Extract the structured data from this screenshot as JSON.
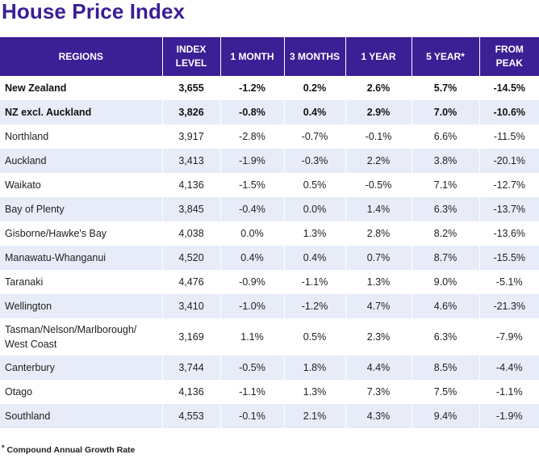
{
  "title": "House Price Index",
  "columns": {
    "regions": "REGIONS",
    "index_level": [
      "INDEX",
      "LEVEL"
    ],
    "one_month": "1 MONTH",
    "three_months": "3 MONTHS",
    "one_year": "1 YEAR",
    "five_year": "5 YEAR*",
    "from_peak": [
      "FROM",
      "PEAK"
    ]
  },
  "rows": [
    {
      "region": [
        "New Zealand"
      ],
      "index": "3,655",
      "m1": "-1.2%",
      "m3": "0.2%",
      "y1": "2.6%",
      "y5": "5.7%",
      "peak": "-14.5%"
    },
    {
      "region": [
        "NZ excl. Auckland"
      ],
      "index": "3,826",
      "m1": "-0.8%",
      "m3": "0.4%",
      "y1": "2.9%",
      "y5": "7.0%",
      "peak": "-10.6%"
    },
    {
      "region": [
        "Northland"
      ],
      "index": "3,917",
      "m1": "-2.8%",
      "m3": "-0.7%",
      "y1": "-0.1%",
      "y5": "6.6%",
      "peak": "-11.5%"
    },
    {
      "region": [
        "Auckland"
      ],
      "index": "3,413",
      "m1": "-1.9%",
      "m3": "-0.3%",
      "y1": "2.2%",
      "y5": "3.8%",
      "peak": "-20.1%"
    },
    {
      "region": [
        "Waikato"
      ],
      "index": "4,136",
      "m1": "-1.5%",
      "m3": "0.5%",
      "y1": "-0.5%",
      "y5": "7.1%",
      "peak": "-12.7%"
    },
    {
      "region": [
        "Bay of Plenty"
      ],
      "index": "3,845",
      "m1": "-0.4%",
      "m3": "0.0%",
      "y1": "1.4%",
      "y5": "6.3%",
      "peak": "-13.7%"
    },
    {
      "region": [
        "Gisborne/Hawke's Bay"
      ],
      "index": "4,038",
      "m1": "0.0%",
      "m3": "1.3%",
      "y1": "2.8%",
      "y5": "8.2%",
      "peak": "-13.6%"
    },
    {
      "region": [
        "Manawatu-Whanganui"
      ],
      "index": "4,520",
      "m1": "0.4%",
      "m3": "0.4%",
      "y1": "0.7%",
      "y5": "8.7%",
      "peak": "-15.5%"
    },
    {
      "region": [
        "Taranaki"
      ],
      "index": "4,476",
      "m1": "-0.9%",
      "m3": "-1.1%",
      "y1": "1.3%",
      "y5": "9.0%",
      "peak": "-5.1%"
    },
    {
      "region": [
        "Wellington"
      ],
      "index": "3,410",
      "m1": "-1.0%",
      "m3": "-1.2%",
      "y1": "4.7%",
      "y5": "4.6%",
      "peak": "-21.3%"
    },
    {
      "region": [
        "Tasman/Nelson/Marlborough/",
        "West Coast"
      ],
      "index": "3,169",
      "m1": "1.1%",
      "m3": "0.5%",
      "y1": "2.3%",
      "y5": "6.3%",
      "peak": "-7.9%"
    },
    {
      "region": [
        "Canterbury"
      ],
      "index": "3,744",
      "m1": "-0.5%",
      "m3": "1.8%",
      "y1": "4.4%",
      "y5": "8.5%",
      "peak": "-4.4%"
    },
    {
      "region": [
        "Otago"
      ],
      "index": "4,136",
      "m1": "-1.1%",
      "m3": "1.3%",
      "y1": "7.3%",
      "y5": "7.5%",
      "peak": "-1.1%"
    },
    {
      "region": [
        "Southland"
      ],
      "index": "4,553",
      "m1": "-0.1%",
      "m3": "2.1%",
      "y1": "4.3%",
      "y5": "9.4%",
      "peak": "-1.9%"
    }
  ],
  "footnote": {
    "mark": "*",
    "text": "Compound Annual Growth Rate"
  },
  "colors": {
    "header_bg": "#3a1f95",
    "title": "#3a1f95",
    "alt_row_bg": "#e7ecf8"
  }
}
